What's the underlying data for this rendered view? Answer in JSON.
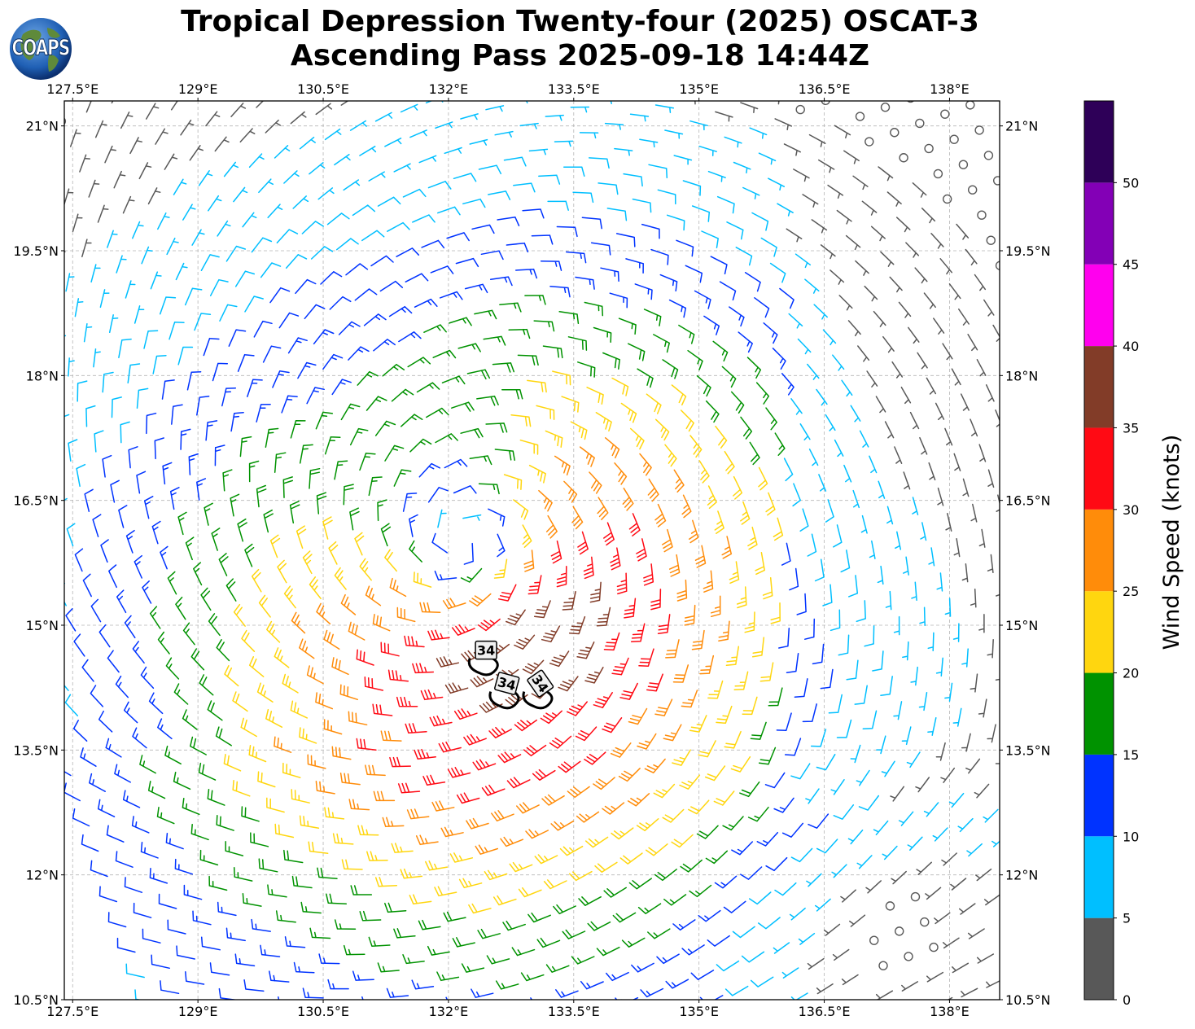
{
  "title": {
    "line1": "Tropical Depression Twenty-four (2025) OSCAT-3",
    "line2": "Ascending Pass 2025-09-18 14:44Z"
  },
  "logo": {
    "text": "COAPS",
    "icon": "globe-icon"
  },
  "map": {
    "lon_labels": [
      "127.5°E",
      "129°E",
      "130.5°E",
      "132°E",
      "133.5°E",
      "135°E",
      "136.5°E",
      "138°E"
    ],
    "lat_labels": [
      "21°N",
      "19.5°N",
      "18°N",
      "16.5°N",
      "15°N",
      "13.5°N",
      "12°N",
      "10.5°N"
    ],
    "lon_values": [
      127.5,
      129,
      130.5,
      132,
      133.5,
      135,
      136.5,
      138
    ],
    "lat_values": [
      21,
      19.5,
      18,
      16.5,
      15,
      13.5,
      12,
      10.5
    ],
    "extent": {
      "lon_min": 127.4,
      "lon_max": 138.6,
      "lat_min": 10.5,
      "lat_max": 21.3
    },
    "storm_center": {
      "lon": 132.15,
      "lat": 16.0
    },
    "contour_label": "34",
    "contour_labels": [
      {
        "text": "34",
        "lon": 132.45,
        "lat": 14.7,
        "rot": 0
      },
      {
        "text": "34",
        "lon": 132.7,
        "lat": 14.3,
        "rot": 15
      },
      {
        "text": "34",
        "lon": 133.1,
        "lat": 14.3,
        "rot": 55
      }
    ],
    "missing_marker": "circle",
    "barb_hemisphere": "northern"
  },
  "colorbar": {
    "label": "Wind Speed (knots)",
    "ticks": [
      "0",
      "5",
      "10",
      "15",
      "20",
      "25",
      "30",
      "35",
      "40",
      "45",
      "50"
    ],
    "bins": [
      {
        "min": 0,
        "max": 5,
        "color": "#585858"
      },
      {
        "min": 5,
        "max": 10,
        "color": "#00bfff"
      },
      {
        "min": 10,
        "max": 15,
        "color": "#0033ff"
      },
      {
        "min": 15,
        "max": 20,
        "color": "#009200"
      },
      {
        "min": 20,
        "max": 25,
        "color": "#ffd60f"
      },
      {
        "min": 25,
        "max": 30,
        "color": "#ff8c0a"
      },
      {
        "min": 30,
        "max": 35,
        "color": "#ff0a14"
      },
      {
        "min": 35,
        "max": 40,
        "color": "#823c28"
      },
      {
        "min": 40,
        "max": 45,
        "color": "#ff00ee"
      },
      {
        "min": 45,
        "max": 50,
        "color": "#8300b6"
      },
      {
        "min": 50,
        "max": 55,
        "color": "#2e0058"
      }
    ]
  }
}
